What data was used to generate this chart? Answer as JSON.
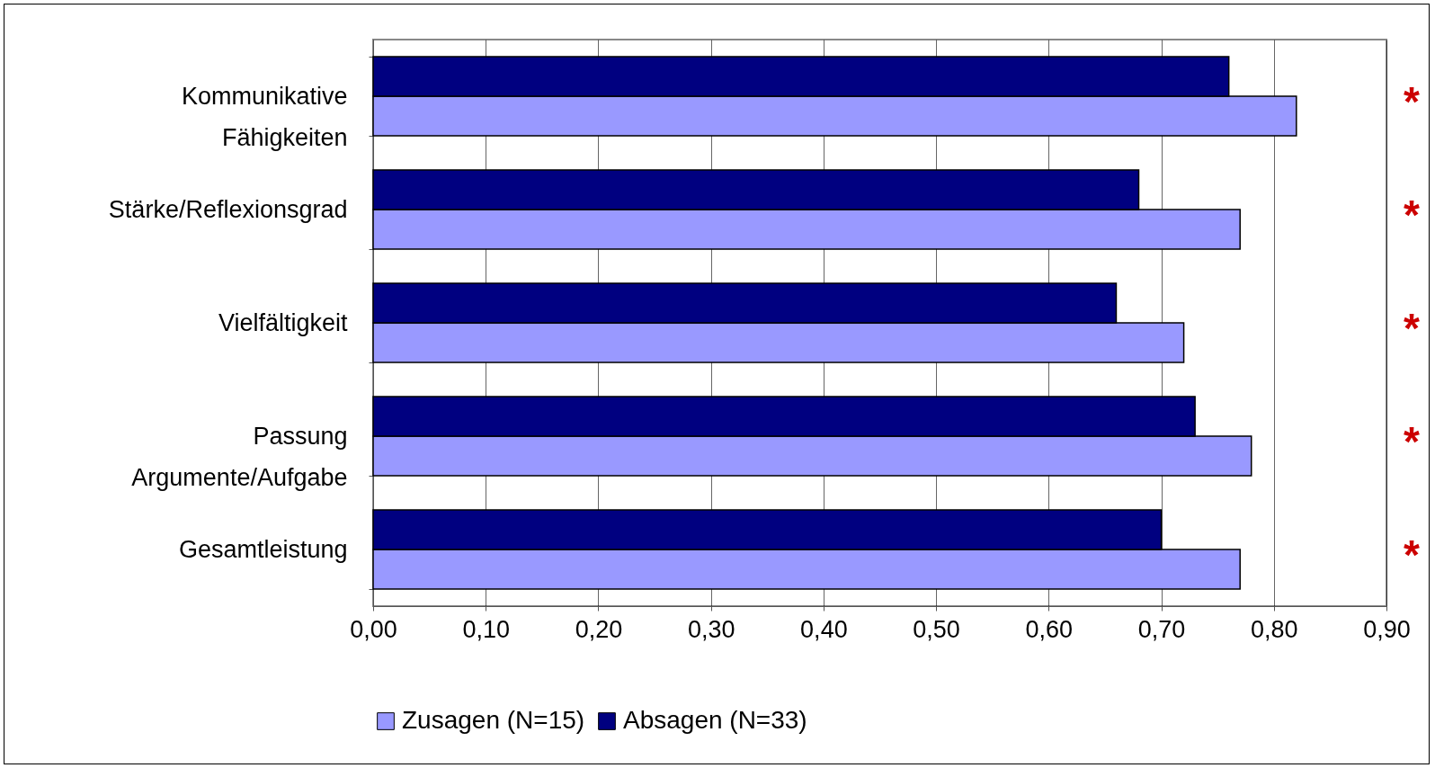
{
  "chart_data": {
    "type": "bar",
    "orientation": "horizontal",
    "categories": [
      "Kommunikative\nFähigkeiten",
      "Stärke/Reflexionsgrad",
      "Vielfältigkeit",
      "Passung\nArgumente/Aufgabe",
      "Gesamtleistung"
    ],
    "series": [
      {
        "name": "Zusagen (N=15)",
        "color": "#9999ff",
        "values": [
          0.82,
          0.77,
          0.72,
          0.78,
          0.77
        ]
      },
      {
        "name": "Absagen (N=33)",
        "color": "#000080",
        "values": [
          0.76,
          0.68,
          0.66,
          0.73,
          0.7
        ]
      }
    ],
    "xlim": [
      0,
      0.9
    ],
    "xticks": [
      {
        "value": 0,
        "label": "0,00"
      },
      {
        "value": 0.1,
        "label": "0,10"
      },
      {
        "value": 0.2,
        "label": "0,20"
      },
      {
        "value": 0.3,
        "label": "0,30"
      },
      {
        "value": 0.4,
        "label": "0,40"
      },
      {
        "value": 0.5,
        "label": "0,50"
      },
      {
        "value": 0.6,
        "label": "0,60"
      },
      {
        "value": 0.7,
        "label": "0,70"
      },
      {
        "value": 0.8,
        "label": "0,80"
      },
      {
        "value": 0.9,
        "label": "0,90"
      }
    ],
    "grid": "x",
    "legend": "bottom",
    "annotations": [
      "*",
      "*",
      "*",
      "*",
      "*"
    ]
  }
}
